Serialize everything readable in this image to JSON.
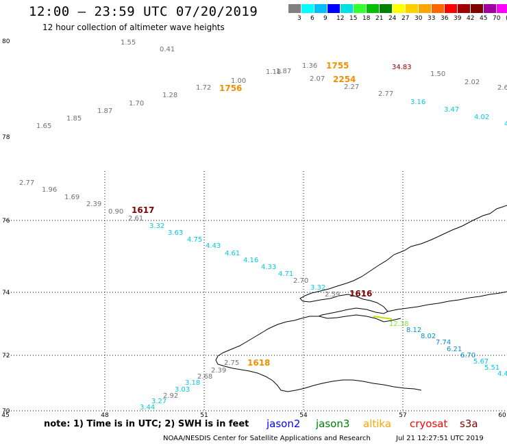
{
  "header": {
    "title": "12:00 – 23:59 UTC 07/20/2019",
    "subtitle": "12 hour collection of altimeter wave heights"
  },
  "colorbar": {
    "cells": [
      {
        "color": "#808080"
      },
      {
        "color": "#00ffff"
      },
      {
        "color": "#00bfff"
      },
      {
        "color": "#0000ff"
      },
      {
        "color": "#00e0e0"
      },
      {
        "color": "#33ff33"
      },
      {
        "color": "#00c000"
      },
      {
        "color": "#008000"
      },
      {
        "color": "#ffff00"
      },
      {
        "color": "#ffd000"
      },
      {
        "color": "#ffa500"
      },
      {
        "color": "#ff6600"
      },
      {
        "color": "#ff0000"
      },
      {
        "color": "#a00000"
      },
      {
        "color": "#800000"
      },
      {
        "color": "#a000a0"
      },
      {
        "color": "#ff00ff"
      },
      {
        "color": "#000000"
      }
    ],
    "ticks": [
      "3",
      "6",
      "9",
      "12",
      "15",
      "18",
      "21",
      "24",
      "27",
      "30",
      "33",
      "36",
      "39",
      "42",
      "45",
      "70",
      "(ft)"
    ]
  },
  "axes": {
    "y_labels": [
      {
        "text": "80",
        "lat": 80
      },
      {
        "text": "78",
        "lat": 78
      },
      {
        "text": "76",
        "lat": 76
      },
      {
        "text": "74",
        "lat": 74
      },
      {
        "text": "72",
        "lat": 72
      },
      {
        "text": "70",
        "lat": 70
      }
    ],
    "x_labels": [
      {
        "text": "45",
        "lon": 45
      },
      {
        "text": "48",
        "lon": 48
      },
      {
        "text": "51",
        "lon": 51
      },
      {
        "text": "54",
        "lon": 54
      },
      {
        "text": "57",
        "lon": 57
      },
      {
        "text": "60",
        "lon": 60
      }
    ]
  },
  "wave_heights": [
    {
      "text": "1.55",
      "color": "#707070"
    },
    {
      "text": "0.41",
      "color": "#707070"
    },
    {
      "text": "1.00",
      "color": "#707070"
    },
    {
      "text": "1.72",
      "color": "#707070"
    },
    {
      "text": "1.28",
      "color": "#707070"
    },
    {
      "text": "1.70",
      "color": "#707070"
    },
    {
      "text": "1.87",
      "color": "#707070"
    },
    {
      "text": "1.85",
      "color": "#707070"
    },
    {
      "text": "1.65",
      "color": "#707070"
    },
    {
      "text": "1.18",
      "color": "#707070"
    },
    {
      "text": "1.87",
      "color": "#707070"
    },
    {
      "text": "1.36",
      "color": "#707070"
    },
    {
      "text": "2.07",
      "color": "#707070"
    },
    {
      "text": "2.27",
      "color": "#707070"
    },
    {
      "text": "2.77",
      "color": "#707070"
    },
    {
      "text": "34.83",
      "color": "#a00000"
    },
    {
      "text": "1.50",
      "color": "#707070"
    },
    {
      "text": "2.02",
      "color": "#707070"
    },
    {
      "text": "2.6",
      "color": "#707070"
    },
    {
      "text": "3.16",
      "color": "#00c8e0"
    },
    {
      "text": "3.47",
      "color": "#00c8e0"
    },
    {
      "text": "4.02",
      "color": "#00c8e0"
    },
    {
      "text": "4",
      "color": "#00c8e0"
    },
    {
      "text": "2.77",
      "color": "#707070"
    },
    {
      "text": "1.96",
      "color": "#707070"
    },
    {
      "text": "1.69",
      "color": "#707070"
    },
    {
      "text": "2.39",
      "color": "#707070"
    },
    {
      "text": "0.90",
      "color": "#707070"
    },
    {
      "text": "2.61",
      "color": "#707070"
    },
    {
      "text": "3.32",
      "color": "#00c8e0"
    },
    {
      "text": "3.63",
      "color": "#00c8e0"
    },
    {
      "text": "4.75",
      "color": "#00c8e0"
    },
    {
      "text": "4.43",
      "color": "#00c8e0"
    },
    {
      "text": "4.61",
      "color": "#00c8e0"
    },
    {
      "text": "4.16",
      "color": "#00c8e0"
    },
    {
      "text": "4.33",
      "color": "#00c8e0"
    },
    {
      "text": "4.71",
      "color": "#00c8e0"
    },
    {
      "text": "2.70",
      "color": "#707070"
    },
    {
      "text": "3.32",
      "color": "#00c8e0"
    },
    {
      "text": "2.59",
      "color": "#707070"
    },
    {
      "text": "12.38",
      "color": "#80e040"
    },
    {
      "text": "8.12",
      "color": "#0090d0"
    },
    {
      "text": "8.02",
      "color": "#0090d0"
    },
    {
      "text": "7.74",
      "color": "#0090d0"
    },
    {
      "text": "6.21",
      "color": "#0090d0"
    },
    {
      "text": "6.70",
      "color": "#0090d0"
    },
    {
      "text": "5.67",
      "color": "#00c8e0"
    },
    {
      "text": "5.51",
      "color": "#00c8e0"
    },
    {
      "text": "4.4",
      "color": "#00c8e0"
    },
    {
      "text": "2.75",
      "color": "#707070"
    },
    {
      "text": "2.39",
      "color": "#707070"
    },
    {
      "text": "2.68",
      "color": "#707070"
    },
    {
      "text": "3.18",
      "color": "#00c8e0"
    },
    {
      "text": "3.03",
      "color": "#00c8e0"
    },
    {
      "text": "2.92",
      "color": "#707070"
    },
    {
      "text": "3.27",
      "color": "#00c8e0"
    },
    {
      "text": "3.44",
      "color": "#00c8e0"
    }
  ],
  "pass_times": [
    {
      "text": "1755",
      "color": "#f09000"
    },
    {
      "text": "2254",
      "color": "#f09000"
    },
    {
      "text": "1756",
      "color": "#f09000"
    },
    {
      "text": "1617",
      "color": "#800000"
    },
    {
      "text": "1616",
      "color": "#800000"
    },
    {
      "text": "1618",
      "color": "#f09000"
    }
  ],
  "footer": {
    "note": "note:  1) Time is in UTC; 2) SWH is in feet",
    "satellites": [
      {
        "name": "jason2",
        "color": "#0000ff"
      },
      {
        "name": "jason3",
        "color": "#008000"
      },
      {
        "name": "altika",
        "color": "#ffa500"
      },
      {
        "name": "cryosat",
        "color": "#ff0000"
      },
      {
        "name": "s3a",
        "color": "#800000"
      }
    ],
    "credit": "NOAA/NESDIS Center for Satellite Applications and Research",
    "timestamp": "Jul 21 12:27:51 UTC 2019"
  }
}
